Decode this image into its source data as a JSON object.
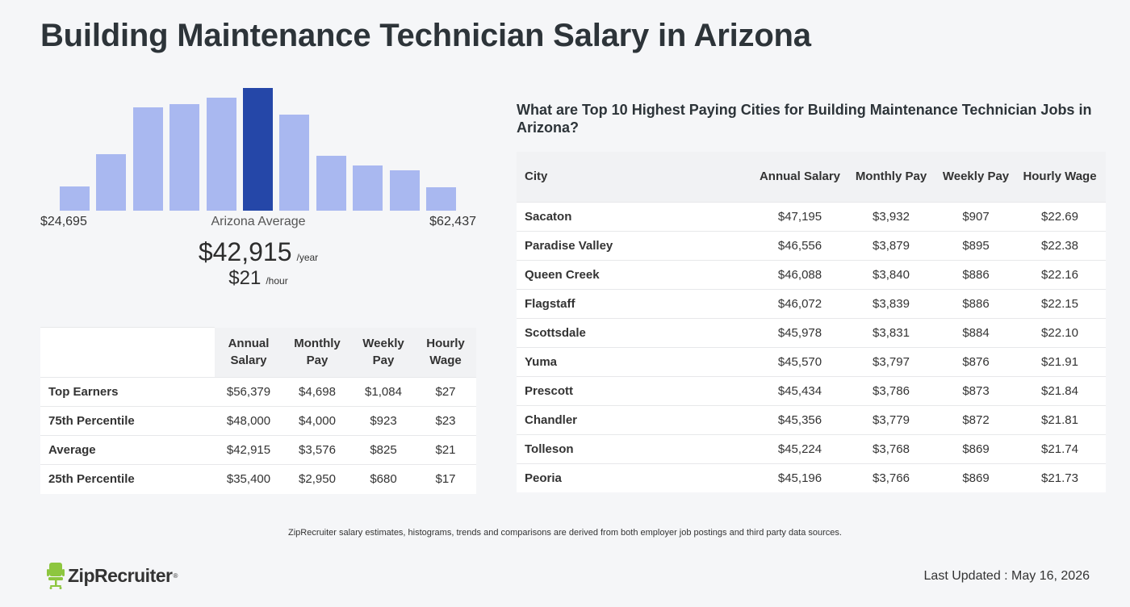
{
  "title": "Building Maintenance Technician Salary in Arizona",
  "histogram": {
    "bar_heights_relative": [
      0.2,
      0.46,
      0.84,
      0.87,
      0.92,
      1.0,
      0.78,
      0.45,
      0.37,
      0.33,
      0.19
    ],
    "highlight_index": 5,
    "color_default": "#a9b8f0",
    "color_highlight": "#2547a8",
    "min_label": "$24,695",
    "max_label": "$62,437",
    "center_label": "Arizona Average"
  },
  "average": {
    "yearly": "$42,915",
    "yearly_unit": "/year",
    "hourly": "$21",
    "hourly_unit": "/hour"
  },
  "percentile_table": {
    "headers": [
      "Annual Salary",
      "Monthly Pay",
      "Weekly Pay",
      "Hourly Wage"
    ],
    "rows": [
      {
        "label": "Top Earners",
        "values": [
          "$56,379",
          "$4,698",
          "$1,084",
          "$27"
        ]
      },
      {
        "label": "75th Percentile",
        "values": [
          "$48,000",
          "$4,000",
          "$923",
          "$23"
        ]
      },
      {
        "label": "Average",
        "values": [
          "$42,915",
          "$3,576",
          "$825",
          "$21"
        ]
      },
      {
        "label": "25th Percentile",
        "values": [
          "$35,400",
          "$2,950",
          "$680",
          "$17"
        ]
      }
    ]
  },
  "cities": {
    "heading": "What are Top 10 Highest Paying Cities for Building Maintenance Technician Jobs in Arizona?",
    "headers": [
      "City",
      "Annual Salary",
      "Monthly Pay",
      "Weekly Pay",
      "Hourly Wage"
    ],
    "rows": [
      {
        "city": "Sacaton",
        "values": [
          "$47,195",
          "$3,932",
          "$907",
          "$22.69"
        ]
      },
      {
        "city": "Paradise Valley",
        "values": [
          "$46,556",
          "$3,879",
          "$895",
          "$22.38"
        ]
      },
      {
        "city": "Queen Creek",
        "values": [
          "$46,088",
          "$3,840",
          "$886",
          "$22.16"
        ]
      },
      {
        "city": "Flagstaff",
        "values": [
          "$46,072",
          "$3,839",
          "$886",
          "$22.15"
        ]
      },
      {
        "city": "Scottsdale",
        "values": [
          "$45,978",
          "$3,831",
          "$884",
          "$22.10"
        ]
      },
      {
        "city": "Yuma",
        "values": [
          "$45,570",
          "$3,797",
          "$876",
          "$21.91"
        ]
      },
      {
        "city": "Prescott",
        "values": [
          "$45,434",
          "$3,786",
          "$873",
          "$21.84"
        ]
      },
      {
        "city": "Chandler",
        "values": [
          "$45,356",
          "$3,779",
          "$872",
          "$21.81"
        ]
      },
      {
        "city": "Tolleson",
        "values": [
          "$45,224",
          "$3,768",
          "$869",
          "$21.74"
        ]
      },
      {
        "city": "Peoria",
        "values": [
          "$45,196",
          "$3,766",
          "$869",
          "$21.73"
        ]
      }
    ]
  },
  "disclaimer": "ZipRecruiter salary estimates, histograms, trends and comparisons are derived from both employer job postings and third party data sources.",
  "logo": {
    "text": "ZipRecruiter",
    "tm": "®",
    "icon": "ziprecruiter-chair-icon",
    "color": "#8dc63f"
  },
  "last_updated": "Last Updated : May 16, 2026"
}
